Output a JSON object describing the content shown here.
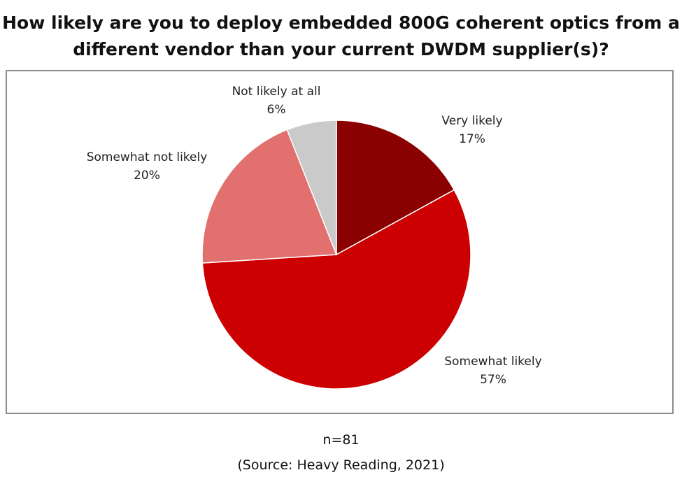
{
  "chart_data": {
    "type": "pie",
    "title": "How likely are you to deploy embedded 800G coherent optics from a different vendor than your current DWDM supplier(s)?",
    "unit": "%",
    "slices": [
      {
        "label": "Very likely",
        "value": 17,
        "value_label": "17%",
        "color": "#8B0000"
      },
      {
        "label": "Somewhat likely",
        "value": 57,
        "value_label": "57%",
        "color": "#CC0000"
      },
      {
        "label": "Somewhat not likely",
        "value": 20,
        "value_label": "20%",
        "color": "#E2706E"
      },
      {
        "label": "Not likely at all",
        "value": 6,
        "value_label": "6%",
        "color": "#CACACA"
      }
    ],
    "start_angle": "12 o'clock",
    "direction": "clockwise",
    "legend": "none",
    "data_labels": "outside"
  },
  "footer": {
    "sample_size": "n=81",
    "source": "(Source: Heavy Reading, 2021)"
  }
}
